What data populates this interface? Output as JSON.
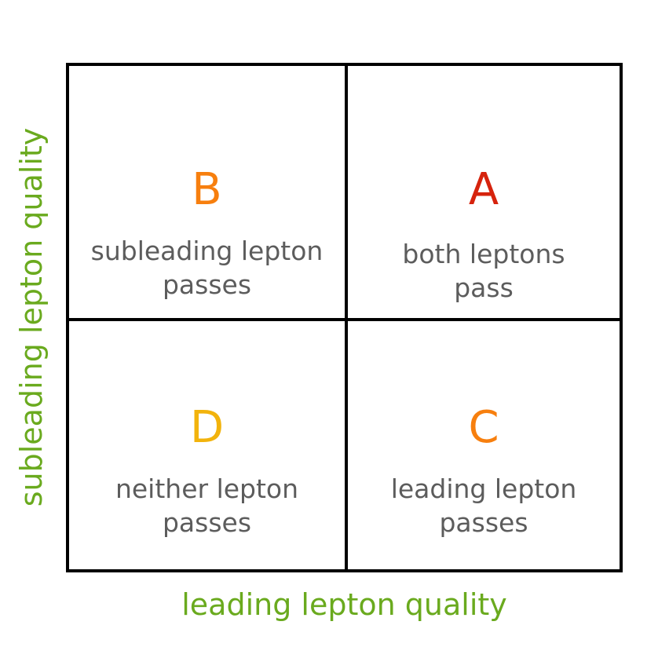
{
  "axes": {
    "x_label": "leading lepton quality",
    "y_label": "subleading lepton quality"
  },
  "regions": {
    "B": {
      "letter": "B",
      "line1": "subleading lepton",
      "line2": "passes",
      "color": "#f77f0e"
    },
    "A": {
      "letter": "A",
      "line1": "both leptons",
      "line2": "pass",
      "color": "#d6230d"
    },
    "D": {
      "letter": "D",
      "line1": "neither lepton",
      "line2": "passes",
      "color": "#f2b30c"
    },
    "C": {
      "letter": "C",
      "line1": "leading lepton",
      "line2": "passes",
      "color": "#f77f0e"
    }
  },
  "colors": {
    "axis_label": "#6aaa1e",
    "description_text": "#5c5c5c",
    "grid_lines": "#000000"
  }
}
